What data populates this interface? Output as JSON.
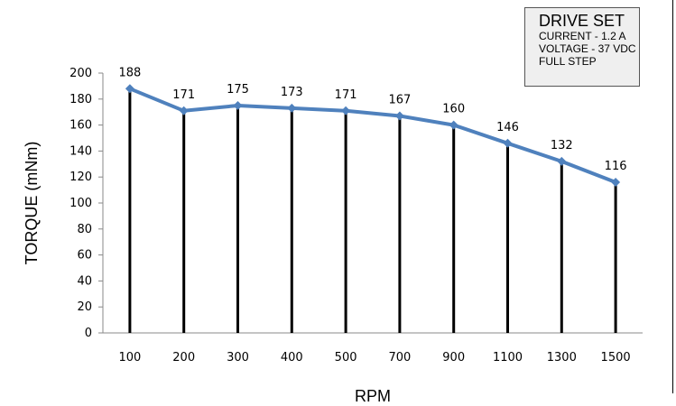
{
  "chart_data": {
    "type": "line",
    "xlabel": "RPM",
    "ylabel": "TORQUE (mNm)",
    "categories": [
      "100",
      "200",
      "300",
      "400",
      "500",
      "700",
      "900",
      "1100",
      "1300",
      "1500"
    ],
    "values": [
      188,
      171,
      175,
      173,
      171,
      167,
      160,
      146,
      132,
      116
    ],
    "ylim": [
      0,
      200
    ],
    "yticks": [
      0,
      20,
      40,
      60,
      80,
      100,
      120,
      140,
      160,
      180,
      200
    ],
    "grid": false,
    "drop_lines": true,
    "data_labels": true,
    "line_color": "#4f81bd",
    "annotation": {
      "title": "DRIVE SET",
      "lines": [
        "CURRENT - 1.2 A",
        "VOLTAGE - 37 VDC",
        "FULL STEP"
      ]
    }
  }
}
